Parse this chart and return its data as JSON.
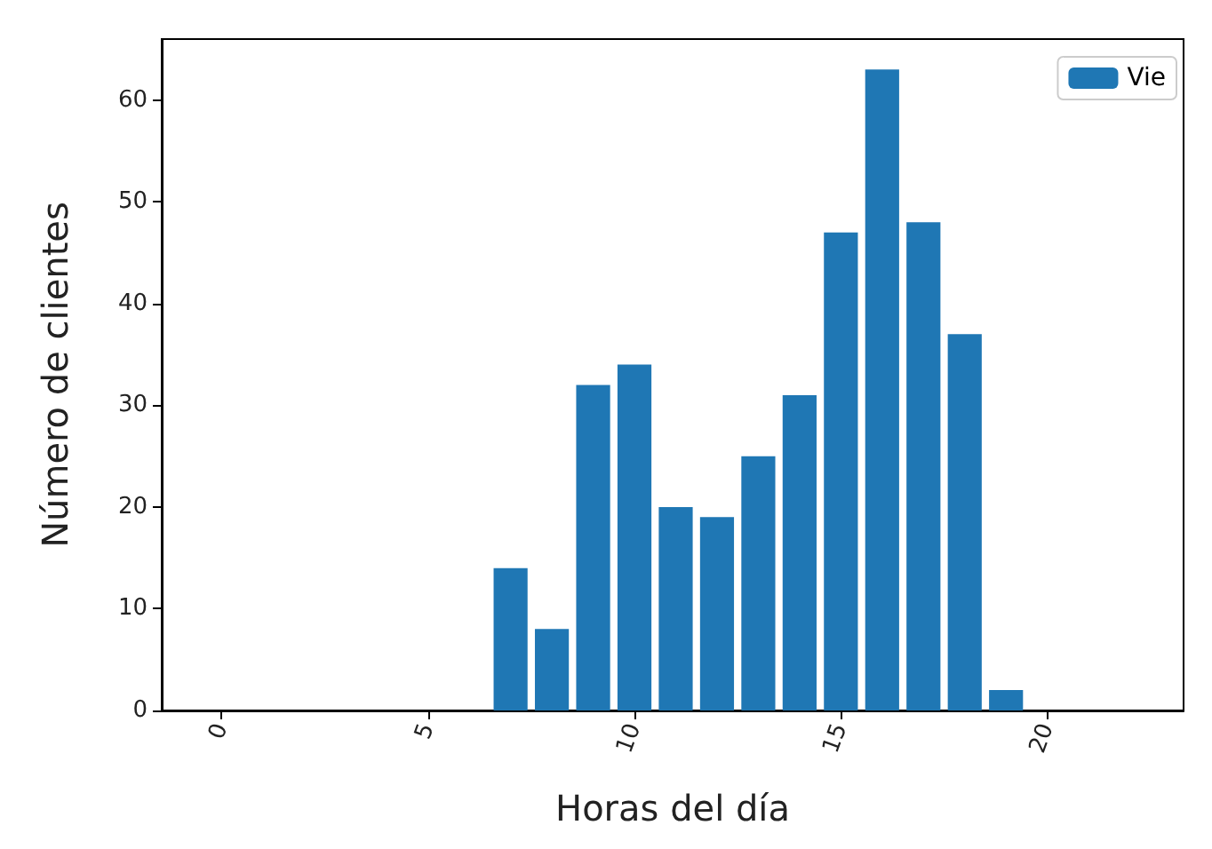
{
  "chart_data": {
    "type": "bar",
    "xlabel": "Horas del día",
    "ylabel": "Número de clientes",
    "x": [
      7,
      8,
      9,
      10,
      11,
      12,
      13,
      14,
      15,
      16,
      17,
      18,
      19
    ],
    "series": [
      {
        "name": "Vie",
        "color": "#1f77b4",
        "values": [
          14,
          8,
          32,
          34,
          20,
          19,
          25,
          31,
          47,
          63,
          48,
          37,
          2
        ]
      }
    ],
    "xlim": [
      -1.45,
      23.3
    ],
    "xticks": [
      0,
      5,
      10,
      15,
      20
    ],
    "ylim": [
      0,
      66
    ],
    "yticks": [
      0,
      10,
      20,
      30,
      40,
      50,
      60
    ],
    "grid": false,
    "legend": "top right"
  }
}
